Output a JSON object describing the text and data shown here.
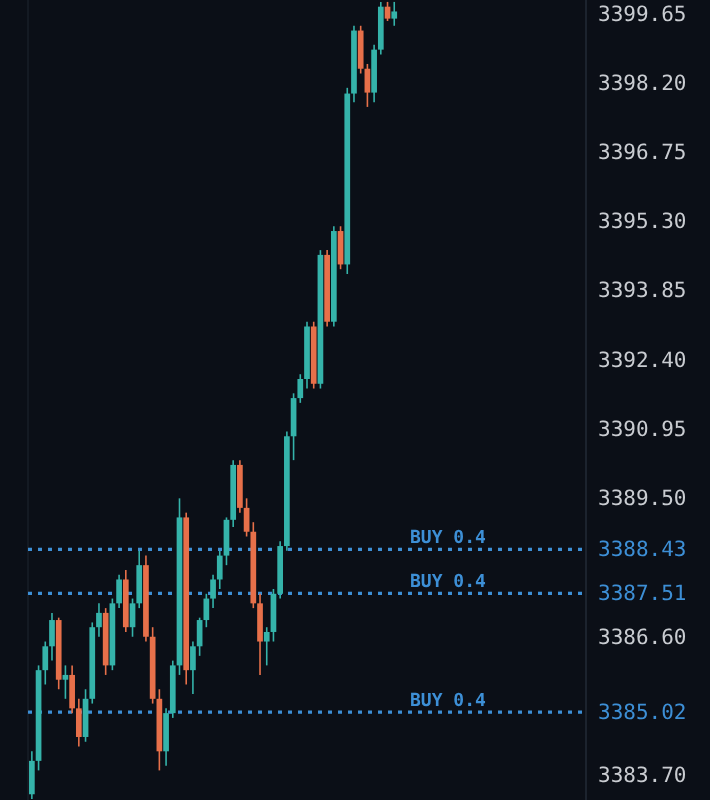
{
  "chart_data": {
    "type": "candlestick",
    "categories": [
      null,
      null,
      null,
      null,
      null,
      null,
      null,
      null,
      null,
      null,
      null,
      null,
      null,
      null,
      null,
      null,
      null,
      null,
      null,
      null,
      null,
      null,
      null,
      null,
      null,
      null,
      null,
      null,
      null,
      null,
      null,
      null,
      null,
      null,
      null,
      null,
      null,
      null,
      null,
      null,
      null,
      null,
      null,
      null,
      null,
      null,
      null,
      null,
      null,
      null,
      null,
      null,
      null,
      null,
      null,
      null,
      null,
      null,
      null,
      null,
      null,
      null,
      null,
      null,
      null,
      null,
      null,
      null,
      null,
      null,
      null,
      null,
      null,
      null,
      null,
      null,
      null,
      null,
      null,
      null,
      null,
      null,
      null
    ],
    "ohlc": [
      [
        3383.3,
        3384.2,
        3383.2,
        3384.0
      ],
      [
        3384.0,
        3386.0,
        3383.8,
        3385.9
      ],
      [
        3385.9,
        3386.5,
        3385.6,
        3386.4
      ],
      [
        3386.4,
        3387.1,
        3386.1,
        3386.95
      ],
      [
        3386.95,
        3387.0,
        3385.5,
        3385.7
      ],
      [
        3385.7,
        3386.0,
        3385.3,
        3385.8
      ],
      [
        3385.8,
        3386.0,
        3385.0,
        3385.1
      ],
      [
        3385.1,
        3385.3,
        3384.3,
        3384.5
      ],
      [
        3384.5,
        3385.5,
        3384.4,
        3385.3
      ],
      [
        3385.3,
        3386.9,
        3385.2,
        3386.8
      ],
      [
        3386.8,
        3387.3,
        3386.6,
        3387.1
      ],
      [
        3387.1,
        3387.2,
        3385.8,
        3386.0
      ],
      [
        3386.0,
        3387.4,
        3385.9,
        3387.3
      ],
      [
        3387.3,
        3387.9,
        3387.2,
        3387.8
      ],
      [
        3387.8,
        3388.0,
        3386.7,
        3386.8
      ],
      [
        3386.8,
        3387.4,
        3386.6,
        3387.3
      ],
      [
        3387.3,
        3388.4,
        3387.2,
        3388.1
      ],
      [
        3388.1,
        3388.3,
        3386.5,
        3386.6
      ],
      [
        3386.6,
        3386.8,
        3385.2,
        3385.3
      ],
      [
        3385.3,
        3385.5,
        3383.8,
        3384.2
      ],
      [
        3384.2,
        3385.1,
        3383.9,
        3385.0
      ],
      [
        3385.0,
        3386.1,
        3384.9,
        3386.0
      ],
      [
        3386.0,
        3389.5,
        3385.8,
        3389.1
      ],
      [
        3389.1,
        3389.2,
        3385.6,
        3385.9
      ],
      [
        3385.9,
        3386.5,
        3385.4,
        3386.4
      ],
      [
        3386.4,
        3387.0,
        3386.2,
        3386.95
      ],
      [
        3386.95,
        3387.5,
        3386.8,
        3387.4
      ],
      [
        3387.4,
        3387.9,
        3387.2,
        3387.8
      ],
      [
        3387.8,
        3388.4,
        3387.6,
        3388.3
      ],
      [
        3388.3,
        3389.1,
        3388.1,
        3389.05
      ],
      [
        3389.05,
        3390.3,
        3388.9,
        3390.2
      ],
      [
        3390.2,
        3390.3,
        3389.2,
        3389.3
      ],
      [
        3389.3,
        3389.5,
        3388.7,
        3388.8
      ],
      [
        3388.8,
        3389.0,
        3387.2,
        3387.3
      ],
      [
        3387.3,
        3387.5,
        3385.8,
        3386.5
      ],
      [
        3386.5,
        3386.8,
        3386.0,
        3386.7
      ],
      [
        3386.7,
        3387.6,
        3386.5,
        3387.5
      ],
      [
        3387.5,
        3388.6,
        3387.4,
        3388.5
      ],
      [
        3388.5,
        3390.9,
        3388.4,
        3390.8
      ],
      [
        3390.8,
        3391.7,
        3390.3,
        3391.6
      ],
      [
        3391.6,
        3392.1,
        3391.5,
        3392.0
      ],
      [
        3392.0,
        3393.2,
        3391.8,
        3393.1
      ],
      [
        3393.1,
        3393.2,
        3391.8,
        3391.9
      ],
      [
        3391.9,
        3394.7,
        3391.8,
        3394.6
      ],
      [
        3394.6,
        3394.7,
        3393.1,
        3393.2
      ],
      [
        3393.2,
        3395.2,
        3393.1,
        3395.1
      ],
      [
        3395.1,
        3395.2,
        3394.3,
        3394.4
      ],
      [
        3394.4,
        3398.1,
        3394.2,
        3397.98
      ],
      [
        3397.98,
        3399.4,
        3397.8,
        3399.3
      ],
      [
        3399.3,
        3399.4,
        3398.4,
        3398.5
      ],
      [
        3398.5,
        3398.6,
        3397.7,
        3398.0
      ],
      [
        3398.0,
        3399.0,
        3397.8,
        3398.9
      ],
      [
        3398.9,
        3399.9,
        3398.8,
        3399.8
      ],
      [
        3399.8,
        3399.9,
        3399.5,
        3399.55
      ],
      [
        3399.55,
        3399.9,
        3399.4,
        3399.7
      ],
      null,
      null,
      null,
      null,
      null,
      null,
      null,
      null,
      null,
      null,
      null,
      null,
      null,
      null,
      null,
      null,
      null,
      null,
      null,
      null,
      null,
      null,
      null,
      null,
      null,
      null,
      null,
      null
    ],
    "ylim": [
      3383.18,
      3399.94
    ],
    "yticks": [
      3399.65,
      {
        "value": 3398.2,
        "label": "3398.20"
      },
      3396.75,
      {
        "value": 3395.3,
        "label": "3395.30"
      },
      3393.85,
      {
        "value": 3392.4,
        "label": "3392.40"
      },
      3390.95,
      {
        "value": 3389.5,
        "label": "3389.50"
      },
      3388.43,
      3387.51,
      {
        "value": 3386.6,
        "label": "3386.60"
      },
      3385.02,
      {
        "value": 3383.7,
        "label": "3383.70"
      }
    ],
    "ref_lines": [
      {
        "axis": "y",
        "value": 3388.43,
        "label": "BUY 0.4",
        "color": "#3d8fd6",
        "line_style": "dotted"
      },
      {
        "axis": "y",
        "value": 3387.51,
        "label": "BUY 0.4",
        "color": "#3d8fd6",
        "line_style": "dotted"
      },
      {
        "axis": "y",
        "value": 3385.02,
        "label": "BUY 0.4",
        "color": "#3d8fd6",
        "line_style": "dotted"
      }
    ],
    "grid": false
  }
}
